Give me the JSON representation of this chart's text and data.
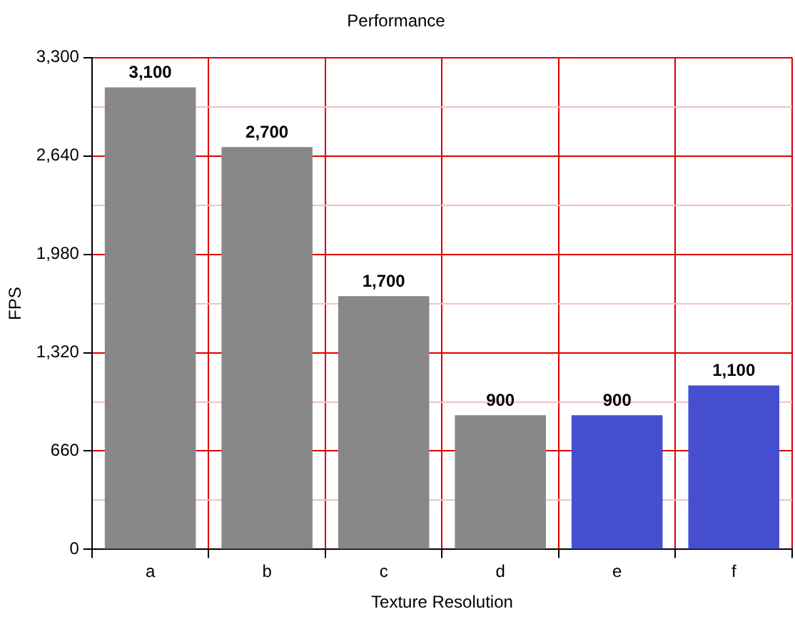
{
  "chart_data": {
    "type": "bar",
    "title": "Performance",
    "xlabel": "Texture Resolution",
    "ylabel": "FPS",
    "categories": [
      "a",
      "b",
      "c",
      "d",
      "e",
      "f"
    ],
    "values": [
      3100,
      2700,
      1700,
      900,
      900,
      1100
    ],
    "colors": [
      "#888888",
      "#888888",
      "#888888",
      "#888888",
      "#464fd0",
      "#464fd0"
    ],
    "value_labels": [
      "3,100",
      "2,700",
      "1,700",
      "900",
      "900",
      "1,100"
    ],
    "ylim": [
      0,
      3300
    ],
    "yticks": [
      0,
      {
        "value": 330,
        "label": null
      },
      660,
      {
        "value": 990,
        "label": null
      },
      {
        "value": 1320,
        "label": "1,320"
      },
      {
        "value": 1650,
        "label": null
      },
      {
        "value": 1980,
        "label": "1,980"
      },
      {
        "value": 2310,
        "label": null
      },
      {
        "value": 2640,
        "label": "2,640"
      },
      {
        "value": 2970,
        "label": null
      },
      {
        "value": 3300,
        "label": "3,300"
      }
    ],
    "grid": true
  }
}
